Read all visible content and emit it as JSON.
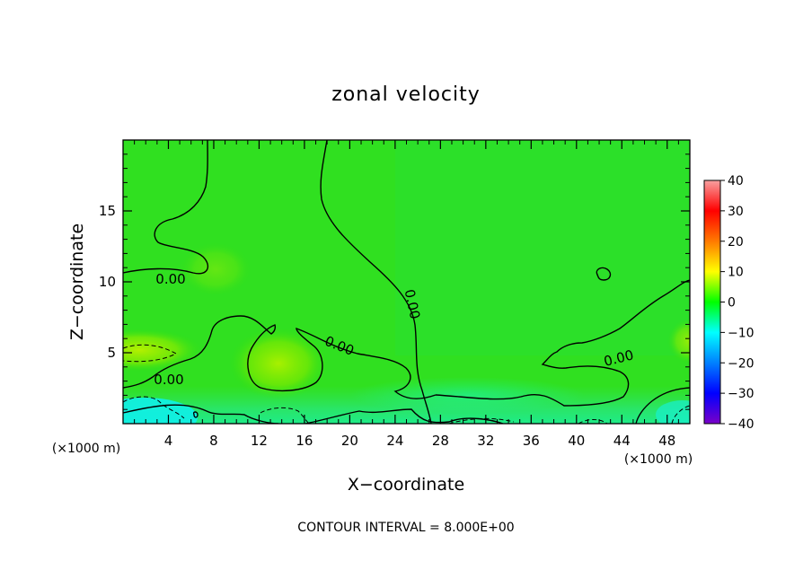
{
  "chart_data": {
    "type": "heatmap",
    "title": "zonal velocity",
    "xlabel": "X−coordinate",
    "ylabel": "Z−coordinate",
    "x_unit": "(×1000 m)",
    "y_unit": "(×1000 m)",
    "xlim": [
      0,
      50
    ],
    "ylim": [
      0,
      20
    ],
    "x_ticks": [
      4,
      8,
      12,
      16,
      20,
      24,
      28,
      32,
      36,
      40,
      44,
      48
    ],
    "y_ticks": [
      5,
      10,
      15
    ],
    "colorbar": {
      "min": -40,
      "max": 40,
      "ticks": [
        40,
        30,
        20,
        10,
        0,
        -10,
        -20,
        -30,
        -40
      ],
      "tick_labels": [
        "40",
        "30",
        "20",
        "10",
        "0",
        "−10",
        "−20",
        "−30",
        "−40"
      ],
      "colors": [
        "#f8a0a0",
        "#ff0000",
        "#ff7a00",
        "#ffff00",
        "#00ff00",
        "#00ffff",
        "#0080ff",
        "#0000ff",
        "#7a00c8"
      ]
    },
    "contour_levels": [
      -8,
      0,
      8
    ],
    "contour_label": "0.00",
    "contour_interval_text": "CONTOUR INTERVAL = 8.000E+00",
    "regions": [
      {
        "desc": "lower-left cyan band",
        "x": [
          0,
          4
        ],
        "z": [
          0,
          2
        ],
        "value": -8
      },
      {
        "desc": "left low-level jet",
        "x": [
          0,
          4
        ],
        "z": [
          4,
          6
        ],
        "value": 6
      },
      {
        "desc": "warm blob",
        "x": [
          10,
          16
        ],
        "z": [
          3,
          6
        ],
        "value": 5
      },
      {
        "desc": "upper interior",
        "x": [
          8,
          48
        ],
        "z": [
          6,
          20
        ],
        "value": 1
      },
      {
        "desc": "right lower band",
        "x": [
          44,
          50
        ],
        "z": [
          0,
          2
        ],
        "value": -4
      }
    ]
  }
}
